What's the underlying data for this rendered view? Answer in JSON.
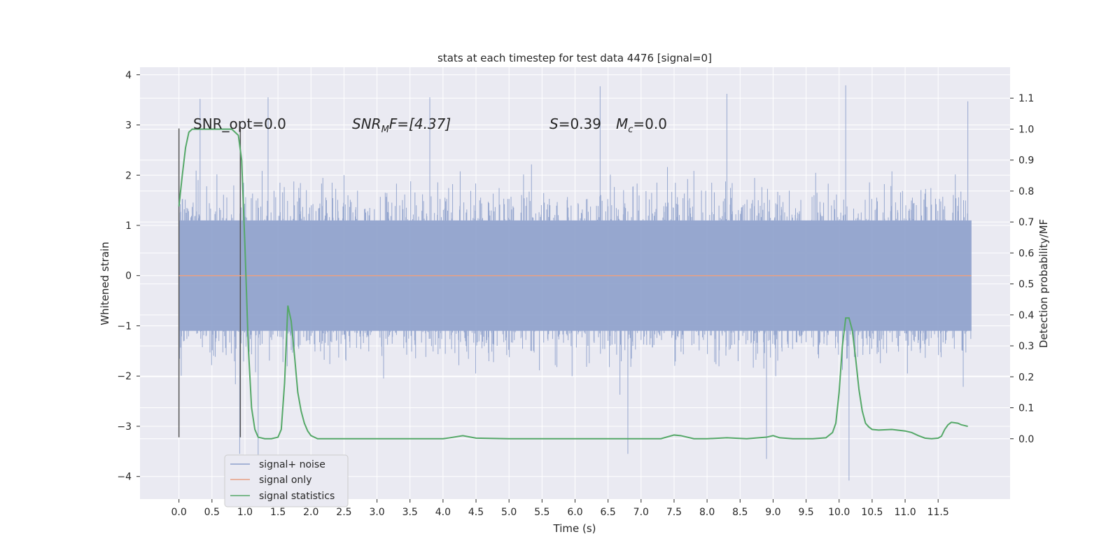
{
  "chart_data": {
    "type": "line",
    "title": "stats at each timestep for test data 4476 [signal=0]",
    "xlabel": "Time (s)",
    "ylabel_left": "Whitened strain",
    "ylabel_right": "Detection probability/MF",
    "xlim": [
      -0.59,
      12.59
    ],
    "ylim_left": [
      -4.45,
      4.15
    ],
    "ylim_right": [
      -0.195,
      1.2
    ],
    "grid": true,
    "legend_placement": "lower-left",
    "x_ticks": [
      "0.0",
      "0.5",
      "1.0",
      "1.5",
      "2.0",
      "2.5",
      "3.0",
      "3.5",
      "4.0",
      "4.5",
      "5.0",
      "5.5",
      "6.0",
      "6.5",
      "7.0",
      "7.5",
      "8.0",
      "8.5",
      "9.0",
      "9.5",
      "10.0",
      "10.5",
      "11.0",
      "11.5"
    ],
    "y_ticks_left": [
      "−4",
      "−3",
      "−2",
      "−1",
      "0",
      "1",
      "2",
      "3",
      "4"
    ],
    "y_ticks_right": [
      "0.0",
      "0.1",
      "0.2",
      "0.3",
      "0.4",
      "0.5",
      "0.6",
      "0.7",
      "0.8",
      "0.9",
      "1.0",
      "1.1"
    ],
    "annotations": {
      "snr_opt": "SNR_opt=0.0",
      "snr_mf_name": "SNR",
      "snr_mf_sub": "M",
      "snr_mf_rest": "F=[4.37]",
      "s_name": "S",
      "s_rest": "=0.39",
      "mc_name": "M",
      "mc_sub": "c",
      "mc_rest": "=0.0"
    },
    "legend": [
      "signal+ noise",
      "signal only",
      "signal statistics"
    ],
    "colors": {
      "signal_noise": "#8da0cb",
      "signal_only": "#e8a083",
      "signal_statistics": "#55a868",
      "background": "#eaeaf2",
      "grid": "#ffffff",
      "markers": "#555555"
    },
    "series": [
      {
        "name": "signal+ noise",
        "x_range": [
          0.0,
          12.0
        ],
        "sample_rate_hz": 2048,
        "approx_envelope": [
          -2.3,
          2.3
        ],
        "peak_values": {
          "x": [
            0.32,
            1.35,
            3.8,
            6.38,
            8.3,
            10.1,
            11.95
          ],
          "y": [
            3.52,
            3.55,
            3.55,
            3.77,
            3.62,
            3.79,
            3.47
          ]
        },
        "trough_values": {
          "x": [
            0.92,
            1.2,
            6.8,
            8.9,
            10.15
          ],
          "y": [
            -3.55,
            -3.6,
            -3.55,
            -3.65,
            -4.08
          ]
        }
      },
      {
        "name": "signal only",
        "x": [
          0.0,
          12.0
        ],
        "y": [
          0.0,
          0.0
        ]
      },
      {
        "name": "signal statistics",
        "x": [
          0.0,
          0.05,
          0.1,
          0.15,
          0.2,
          0.3,
          0.4,
          0.5,
          0.6,
          0.7,
          0.8,
          0.85,
          0.9,
          0.95,
          1.0,
          1.05,
          1.1,
          1.15,
          1.2,
          1.3,
          1.4,
          1.5,
          1.55,
          1.6,
          1.65,
          1.7,
          1.75,
          1.8,
          1.85,
          1.9,
          1.95,
          2.0,
          2.1,
          2.2,
          2.5,
          3.0,
          3.5,
          4.0,
          4.1,
          4.3,
          4.5,
          5.0,
          5.5,
          6.0,
          6.5,
          7.0,
          7.3,
          7.5,
          7.6,
          7.8,
          8.0,
          8.3,
          8.6,
          8.9,
          9.0,
          9.1,
          9.3,
          9.6,
          9.8,
          9.9,
          9.95,
          10.0,
          10.05,
          10.1,
          10.15,
          10.2,
          10.25,
          10.3,
          10.35,
          10.4,
          10.45,
          10.5,
          10.6,
          10.8,
          11.0,
          11.1,
          11.2,
          11.3,
          11.4,
          11.5,
          11.55,
          11.6,
          11.65,
          11.7,
          11.8,
          11.85,
          11.95
        ],
        "y": [
          0.75,
          0.85,
          0.94,
          0.99,
          1.0,
          1.0,
          1.0,
          1.0,
          1.0,
          1.0,
          1.0,
          0.99,
          0.98,
          0.9,
          0.62,
          0.3,
          0.1,
          0.03,
          0.005,
          0.0,
          0.0,
          0.005,
          0.03,
          0.18,
          0.43,
          0.38,
          0.27,
          0.15,
          0.09,
          0.05,
          0.025,
          0.01,
          0.0,
          0.0,
          0.0,
          0.0,
          0.0,
          0.0,
          0.003,
          0.01,
          0.002,
          0.0,
          0.0,
          0.0,
          0.0,
          0.0,
          0.0,
          0.012,
          0.01,
          0.0,
          0.0,
          0.003,
          0.0,
          0.005,
          0.01,
          0.003,
          0.0,
          0.0,
          0.003,
          0.02,
          0.05,
          0.15,
          0.3,
          0.39,
          0.39,
          0.35,
          0.26,
          0.16,
          0.09,
          0.05,
          0.038,
          0.03,
          0.028,
          0.03,
          0.025,
          0.02,
          0.01,
          0.002,
          0.0,
          0.002,
          0.008,
          0.03,
          0.045,
          0.053,
          0.05,
          0.045,
          0.04
        ]
      }
    ]
  }
}
